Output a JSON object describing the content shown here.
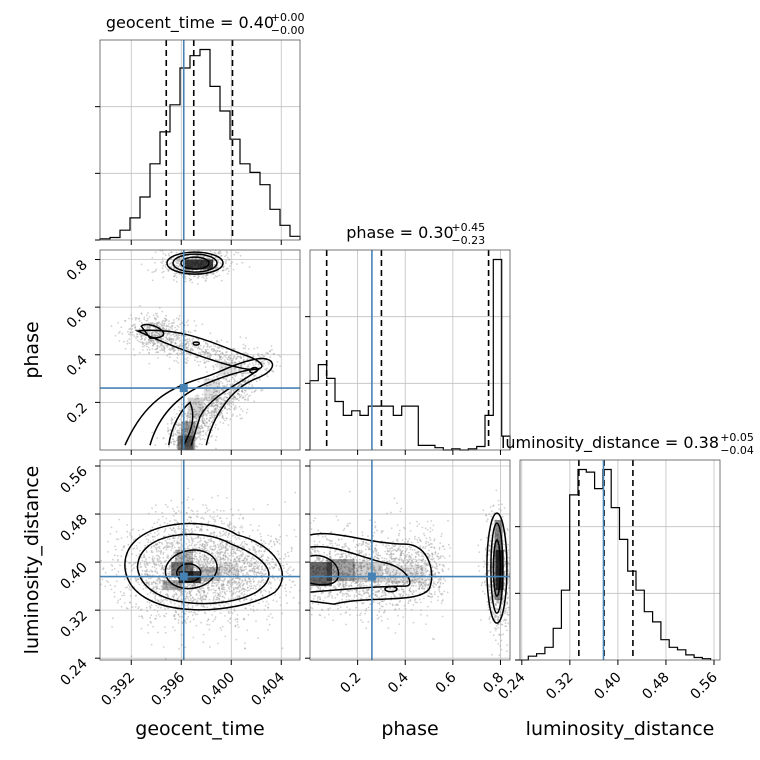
{
  "chart_data": {
    "type": "corner",
    "parameters": [
      "geocent_time",
      "phase",
      "luminosity_distance"
    ],
    "colors": {
      "truth": "#4682b4",
      "line": "#000000",
      "grid": "#c0c0c0",
      "scatter": "#9a9a9a"
    },
    "axes": {
      "geocent_time": {
        "range": [
          0.3895,
          0.4055
        ],
        "ticks": [
          0.392,
          0.396,
          0.4,
          0.404
        ],
        "tick_labels": [
          "0.392",
          "0.396",
          "0.400",
          "0.404"
        ]
      },
      "phase": {
        "range": [
          0.0,
          0.84
        ],
        "ticks": [
          0.2,
          0.4,
          0.6,
          0.8
        ],
        "tick_labels": [
          "0.2",
          "0.4",
          "0.6",
          "0.8"
        ]
      },
      "luminosity_distance": {
        "range": [
          0.237,
          0.57
        ],
        "ticks": [
          0.24,
          0.32,
          0.4,
          0.48,
          0.56
        ],
        "tick_labels": [
          "0.24",
          "0.32",
          "0.40",
          "0.48",
          "0.56"
        ]
      }
    },
    "truths": {
      "geocent_time": 0.3962,
      "phase": 0.26,
      "luminosity_distance": 0.376
    },
    "titles": [
      {
        "param": "geocent_time",
        "text": "geocent_time = 0.40",
        "plus": "+0.00",
        "minus": "−0.00"
      },
      {
        "param": "phase",
        "text": "phase = 0.30",
        "plus": "+0.45",
        "minus": "−0.23"
      },
      {
        "param": "luminosity_distance",
        "text": "luminosity_distance = 0.38",
        "plus": "+0.05",
        "minus": "−0.04"
      }
    ],
    "quantiles": {
      "geocent_time": [
        0.3948,
        0.397,
        0.4001
      ],
      "phase": [
        0.07,
        0.3,
        0.75
      ],
      "luminosity_distance": [
        0.335,
        0.377,
        0.425
      ]
    },
    "histograms": {
      "geocent_time": {
        "edges": [
          0.3895,
          0.3903,
          0.3911,
          0.3919,
          0.3927,
          0.3935,
          0.3943,
          0.3951,
          0.3959,
          0.3967,
          0.3975,
          0.3983,
          0.3991,
          0.3999,
          0.4007,
          0.4015,
          0.4023,
          0.4031,
          0.4039,
          0.4047,
          0.4055
        ],
        "counts": [
          1,
          2,
          8,
          18,
          35,
          62,
          88,
          110,
          140,
          150,
          155,
          125,
          105,
          82,
          62,
          55,
          45,
          25,
          12,
          3
        ]
      },
      "phase": {
        "edges": [
          0.0,
          0.035,
          0.07,
          0.105,
          0.14,
          0.175,
          0.21,
          0.245,
          0.28,
          0.315,
          0.35,
          0.385,
          0.42,
          0.455,
          0.49,
          0.525,
          0.56,
          0.595,
          0.63,
          0.665,
          0.7,
          0.735,
          0.77,
          0.805,
          0.84
        ],
        "counts": [
          60,
          74,
          62,
          42,
          30,
          34,
          30,
          38,
          38,
          38,
          30,
          38,
          38,
          4,
          4,
          2,
          0,
          1,
          0,
          1,
          3,
          30,
          165,
          12
        ]
      },
      "luminosity_distance": {
        "edges": [
          0.237,
          0.2508,
          0.2646,
          0.2784,
          0.2922,
          0.306,
          0.3198,
          0.3336,
          0.3474,
          0.3612,
          0.375,
          0.3888,
          0.4026,
          0.4164,
          0.4302,
          0.444,
          0.4578,
          0.4716,
          0.4854,
          0.4992,
          0.513,
          0.5268,
          0.5406,
          0.5544
        ],
        "counts": [
          0,
          3,
          5,
          10,
          25,
          55,
          130,
          150,
          148,
          135,
          150,
          120,
          95,
          70,
          55,
          38,
          30,
          16,
          10,
          8,
          4,
          2,
          1
        ]
      }
    }
  }
}
